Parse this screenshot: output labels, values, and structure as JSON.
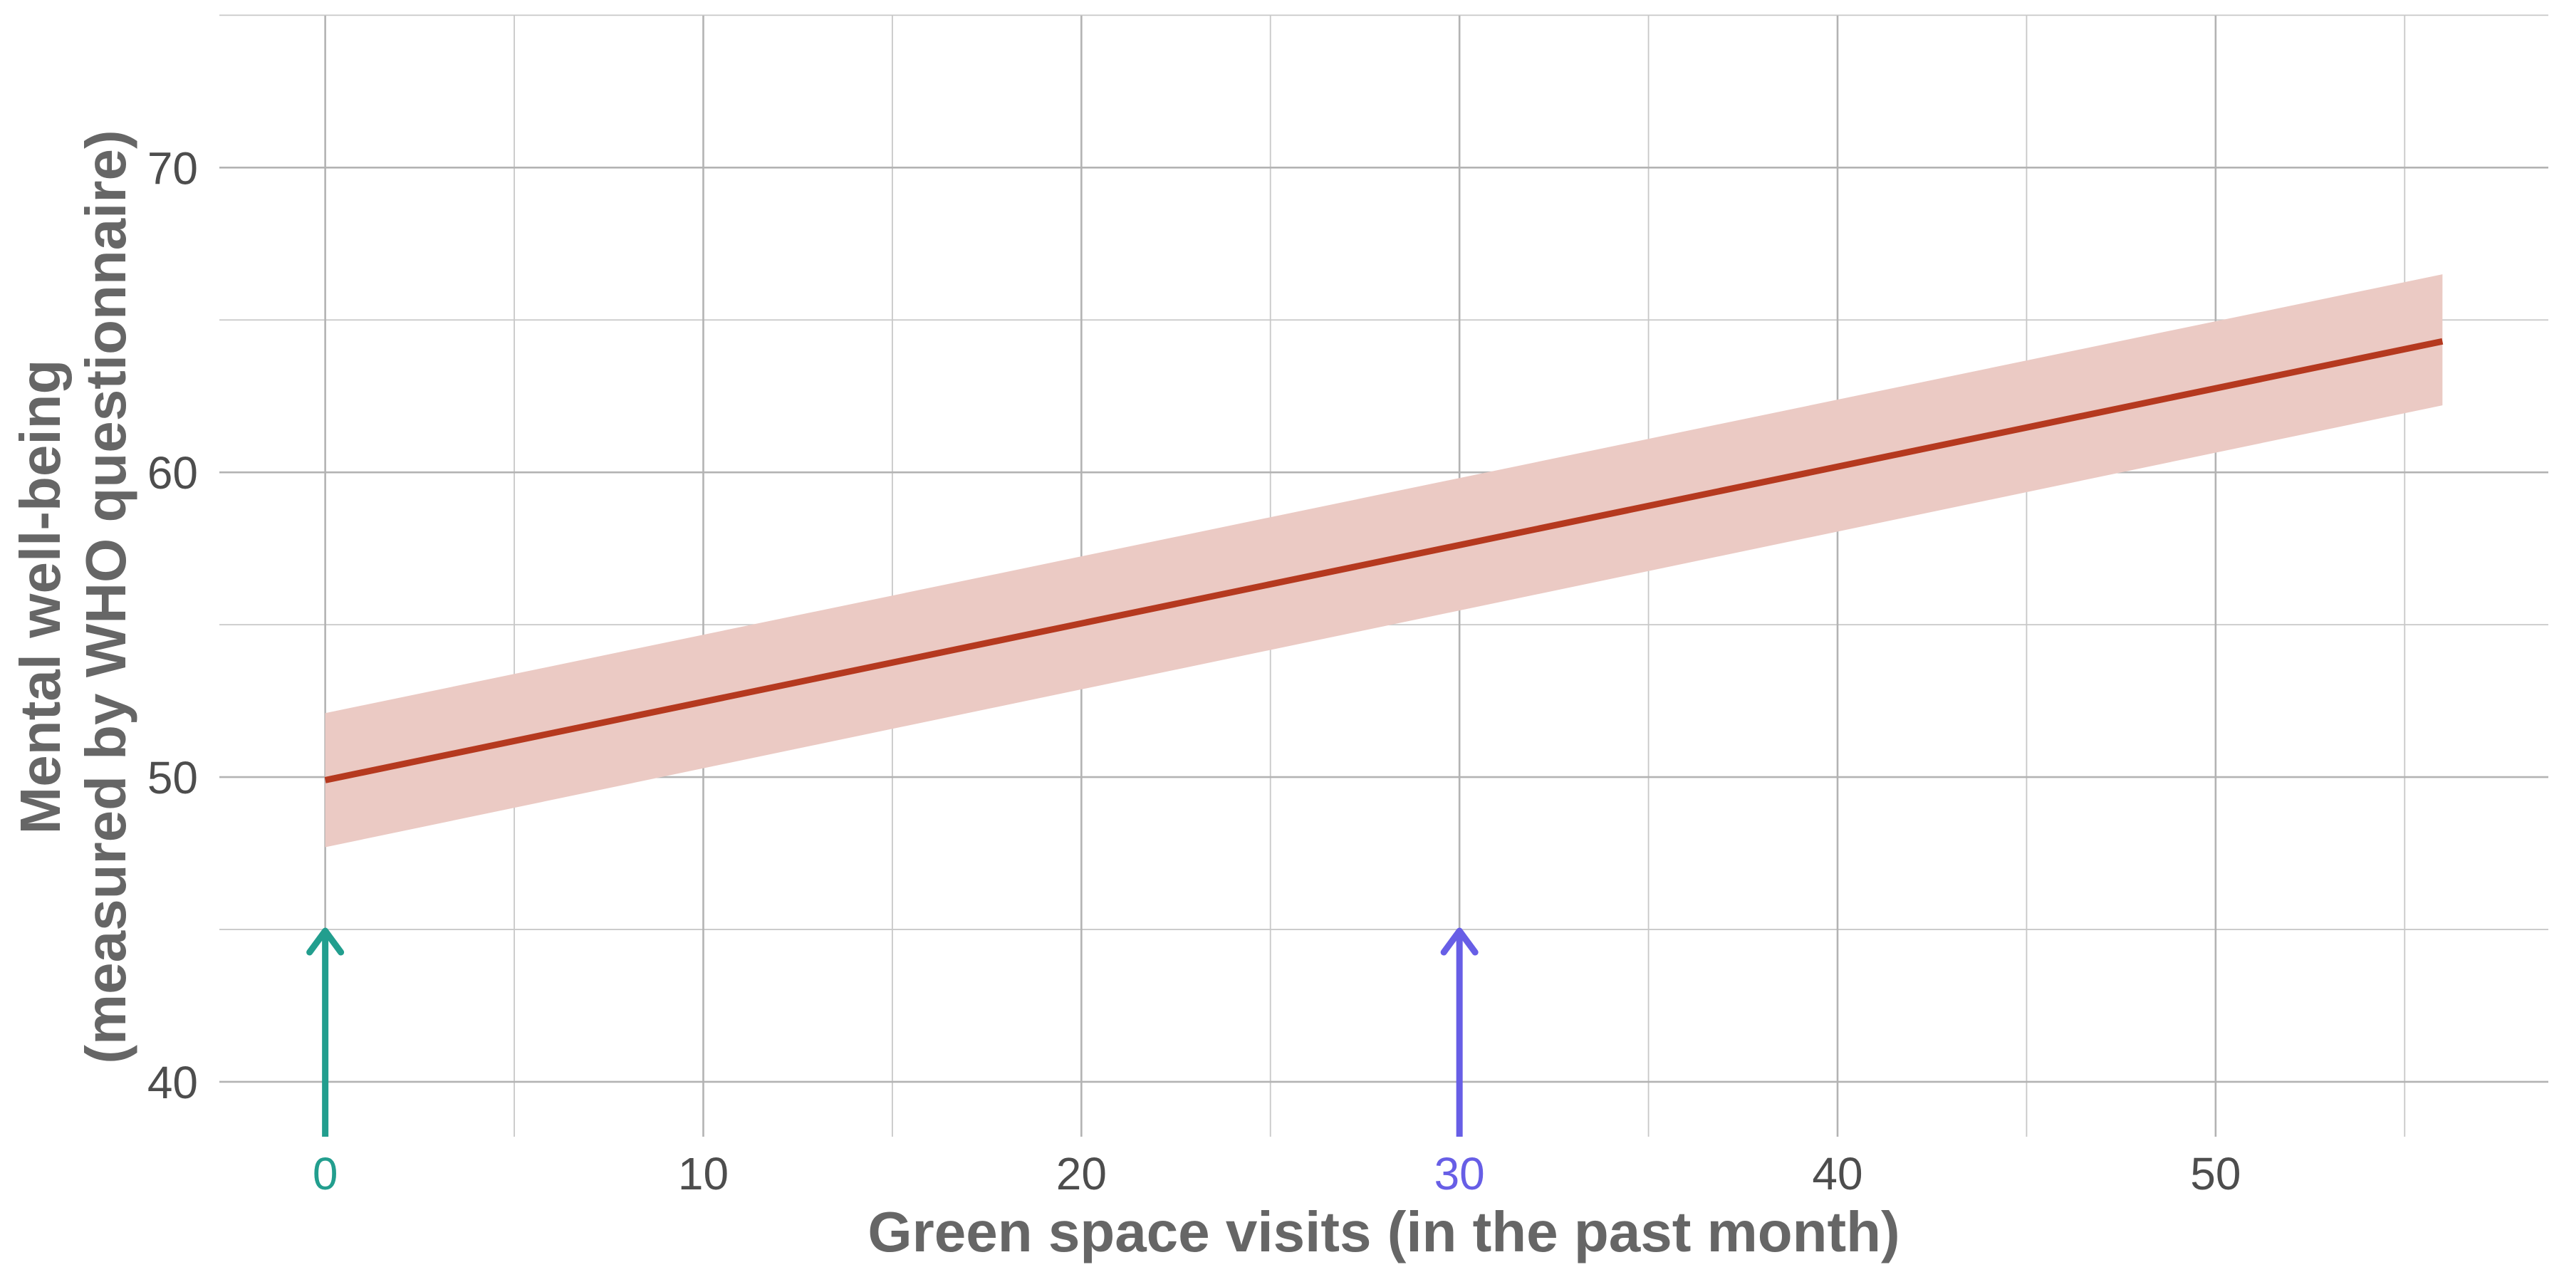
{
  "chart_data": {
    "type": "line",
    "xlabel": "Green space visits (in the past month)",
    "ylabel_lines": [
      "Mental well-being",
      "(measured by WHO questionnaire)"
    ],
    "xlim": [
      -2.8,
      58.8
    ],
    "ylim": [
      38.2,
      75.5
    ],
    "x_ticks": [
      0,
      10,
      20,
      30,
      40,
      50
    ],
    "x_minor_ticks": [
      5,
      15,
      25,
      35,
      45,
      55
    ],
    "y_ticks": [
      40,
      50,
      60,
      70
    ],
    "y_minor_ticks": [
      45,
      55,
      65,
      75
    ],
    "grid": true,
    "series": [
      {
        "x": [
          0,
          56
        ],
        "y": [
          49.9,
          64.3
        ],
        "ci_lower": [
          47.7,
          62.2
        ],
        "ci_upper": [
          52.1,
          66.5
        ]
      }
    ],
    "line_color": "#b5391f",
    "ribbon_color": "#ebcac4",
    "annotations": [
      {
        "x": 0,
        "y_from": 38.2,
        "y_to": 45.0,
        "color": "#229e8e",
        "tick_label": "0"
      },
      {
        "x": 30,
        "y_from": 38.2,
        "y_to": 45.0,
        "color": "#675ee6",
        "tick_label": "30"
      }
    ]
  }
}
